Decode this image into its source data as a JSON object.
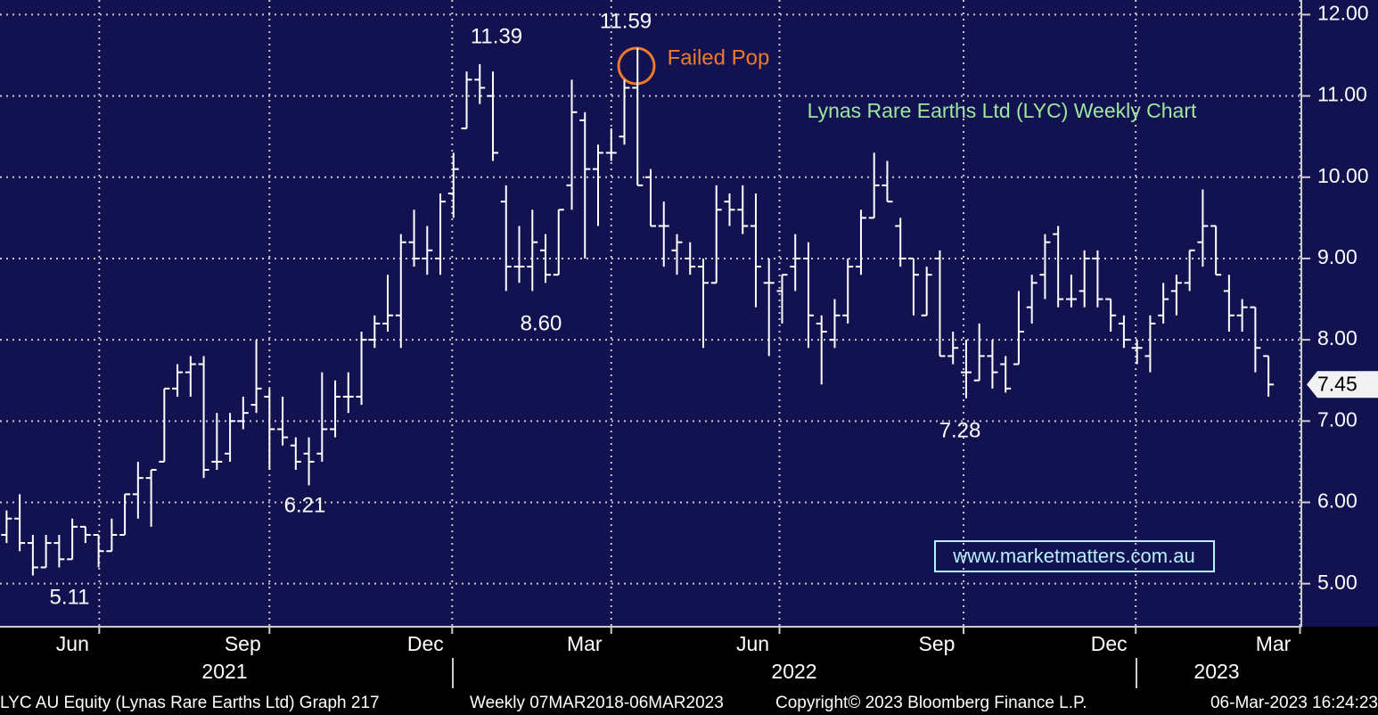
{
  "chart_data": {
    "type": "ohlc",
    "title": "Lynas Rare Earths Ltd (LYC) Weekly Chart",
    "watermark": "www.marketmatters.com.au",
    "annotations": [
      "11.39",
      "11.59",
      "8.60",
      "6.21",
      "5.11",
      "7.28",
      "Failed Pop"
    ],
    "footer": [
      "LYC AU Equity (Lynas Rare Earths Ltd) Graph 217",
      "Weekly 07MAR2018-06MAR2023",
      "Copyright© 2023 Bloomberg Finance L.P.",
      "06-Mar-2023 16:24:23"
    ],
    "years": [
      "2021",
      "2022",
      "2023"
    ],
    "color": "#ffffff",
    "grid": true,
    "open": [
      5.6,
      5.8,
      5.5,
      5.2,
      5.5,
      5.3,
      5.7,
      5.6,
      5.4,
      5.6,
      6.1,
      6.3,
      6.5,
      7.4,
      7.6,
      7.7,
      6.5,
      6.6,
      7.0,
      7.2,
      7.3,
      6.9,
      6.7,
      6.6,
      6.6,
      6.9,
      7.3,
      7.3,
      8.0,
      8.2,
      8.3,
      9.2,
      9.0,
      9.0,
      9.8,
      10.6,
      11.2,
      11.0,
      9.7,
      8.9,
      8.9,
      9.1,
      8.8,
      9.9,
      10.7,
      10.1,
      10.3,
      10.5,
      11.1,
      10.0,
      9.4,
      9.1,
      9.0,
      8.9,
      8.7,
      9.7,
      9.6,
      9.4,
      8.7,
      8.6,
      8.9,
      9.0,
      8.2,
      8.0,
      8.3,
      8.9,
      9.5,
      9.9,
      9.4,
      9.0,
      8.3,
      9.0,
      7.8,
      7.6,
      7.5,
      7.8,
      7.7,
      7.7,
      8.4,
      8.8,
      9.3,
      8.5,
      8.6,
      9.0,
      8.5,
      8.2,
      7.9,
      7.8,
      8.3,
      8.6,
      8.7,
      9.2,
      9.4,
      8.6,
      8.3,
      8.4,
      7.8
    ],
    "high": [
      5.9,
      6.1,
      5.6,
      5.6,
      5.6,
      5.8,
      5.7,
      5.6,
      5.8,
      6.1,
      6.5,
      6.4,
      7.4,
      7.7,
      7.8,
      7.8,
      7.1,
      7.1,
      7.3,
      8.0,
      7.4,
      7.3,
      6.8,
      6.8,
      7.6,
      7.5,
      7.6,
      8.1,
      8.3,
      8.8,
      9.3,
      9.6,
      9.4,
      9.8,
      10.3,
      11.3,
      11.39,
      11.3,
      9.9,
      9.4,
      9.6,
      9.3,
      9.6,
      11.2,
      10.8,
      10.4,
      10.6,
      11.2,
      11.59,
      10.1,
      9.7,
      9.3,
      9.2,
      9.0,
      9.9,
      9.8,
      9.9,
      9.8,
      9.0,
      8.8,
      9.3,
      9.2,
      8.3,
      8.5,
      9.0,
      9.6,
      10.3,
      10.2,
      9.5,
      9.0,
      8.9,
      9.1,
      8.1,
      8.0,
      8.2,
      8.0,
      7.8,
      8.6,
      8.8,
      9.3,
      9.4,
      8.8,
      9.1,
      9.1,
      8.5,
      8.3,
      8.0,
      8.3,
      8.7,
      8.8,
      9.1,
      9.85,
      9.4,
      8.8,
      8.5,
      8.4,
      7.8
    ],
    "low": [
      5.5,
      5.4,
      5.1,
      5.2,
      5.2,
      5.3,
      5.5,
      5.2,
      5.4,
      5.6,
      5.8,
      5.7,
      6.5,
      7.3,
      7.3,
      6.3,
      6.4,
      6.5,
      6.9,
      7.1,
      6.4,
      6.7,
      6.4,
      6.21,
      6.5,
      6.8,
      7.1,
      7.2,
      7.9,
      8.1,
      7.9,
      8.9,
      8.8,
      8.8,
      9.5,
      10.6,
      10.9,
      10.2,
      8.6,
      8.7,
      8.6,
      8.7,
      8.8,
      9.6,
      9.0,
      9.4,
      10.2,
      10.4,
      9.9,
      9.4,
      8.9,
      8.8,
      8.8,
      7.9,
      8.7,
      9.4,
      9.3,
      8.4,
      7.8,
      8.2,
      8.6,
      7.9,
      7.45,
      7.9,
      8.2,
      8.8,
      9.5,
      9.7,
      8.9,
      8.3,
      8.3,
      7.8,
      7.7,
      7.28,
      7.5,
      7.4,
      7.35,
      7.7,
      8.2,
      8.5,
      8.4,
      8.4,
      8.4,
      8.4,
      8.1,
      7.9,
      7.7,
      7.6,
      8.2,
      8.3,
      8.6,
      8.9,
      8.8,
      8.1,
      8.1,
      7.6,
      7.3
    ],
    "close": [
      5.8,
      5.5,
      5.2,
      5.5,
      5.3,
      5.7,
      5.6,
      5.4,
      5.6,
      6.1,
      6.3,
      6.4,
      7.4,
      7.6,
      7.7,
      6.4,
      6.5,
      7.0,
      7.1,
      7.4,
      6.9,
      6.8,
      6.5,
      6.5,
      6.9,
      7.3,
      7.3,
      8.0,
      8.2,
      8.3,
      9.2,
      9.0,
      9.1,
      9.7,
      10.1,
      11.2,
      11.1,
      10.3,
      8.9,
      8.9,
      9.2,
      8.8,
      9.6,
      10.8,
      10.1,
      10.3,
      10.3,
      11.1,
      9.9,
      9.4,
      9.4,
      9.2,
      8.9,
      8.7,
      9.6,
      9.6,
      9.4,
      8.9,
      8.7,
      8.8,
      9.0,
      8.3,
      8.1,
      8.3,
      8.9,
      9.5,
      9.9,
      9.7,
      9.0,
      8.8,
      8.8,
      7.8,
      7.9,
      7.6,
      7.8,
      7.6,
      7.4,
      8.1,
      8.7,
      9.2,
      8.5,
      8.5,
      9.0,
      8.5,
      8.3,
      8.0,
      7.9,
      8.2,
      8.5,
      8.7,
      9.1,
      9.4,
      8.8,
      8.3,
      8.4,
      7.9,
      7.45
    ],
    "xlim": [
      -0.5,
      98.5
    ],
    "xticks": [
      {
        "value": 7.05,
        "label": "Jun"
      },
      {
        "value": 20,
        "label": "Sep"
      },
      {
        "value": 33.9,
        "label": "Dec"
      },
      {
        "value": 46,
        "label": "Mar"
      },
      {
        "value": 58.8,
        "label": "Jun"
      },
      {
        "value": 72.8,
        "label": "Sep"
      },
      {
        "value": 85.9,
        "label": "Dec"
      },
      {
        "value": 98.4,
        "label": "Mar"
      }
    ],
    "ylim": [
      4.47,
      12.18
    ],
    "yticks": [
      {
        "value": 5,
        "label": "5.00"
      },
      {
        "value": 6,
        "label": "6.00"
      },
      {
        "value": 7,
        "label": "7.00"
      },
      {
        "value": 8,
        "label": "8.00"
      },
      {
        "value": 9,
        "label": "9.00"
      },
      {
        "value": 10,
        "label": "10.00"
      },
      {
        "value": 11,
        "label": "11.00"
      },
      {
        "value": 12,
        "label": "12.00"
      }
    ]
  }
}
